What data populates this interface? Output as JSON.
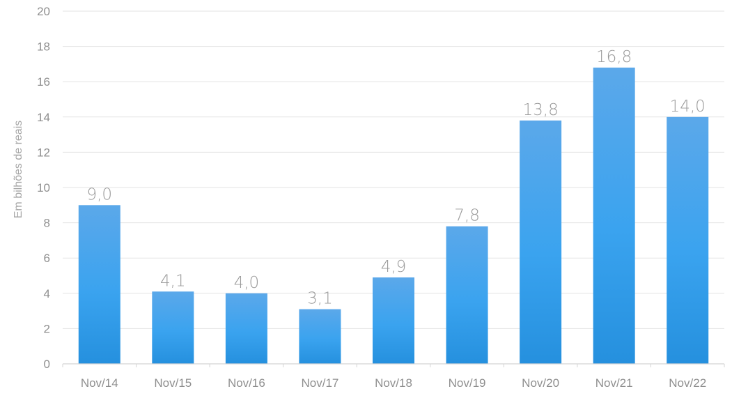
{
  "chart_data": {
    "type": "bar",
    "categories": [
      "Nov/14",
      "Nov/15",
      "Nov/16",
      "Nov/17",
      "Nov/18",
      "Nov/19",
      "Nov/20",
      "Nov/21",
      "Nov/22"
    ],
    "values": [
      9.0,
      4.1,
      4.0,
      3.1,
      4.9,
      7.8,
      13.8,
      16.8,
      14.0
    ],
    "value_labels": [
      "9,0",
      "4,1",
      "4,0",
      "3,1",
      "4,9",
      "7,8",
      "13,8",
      "16,8",
      "14,0"
    ],
    "ylabel": "Em bilhões de reais",
    "xlabel": "",
    "ylim": [
      0,
      20
    ],
    "yticks": [
      0,
      2,
      4,
      6,
      8,
      10,
      12,
      14,
      16,
      18,
      20
    ],
    "grid": true,
    "legend": "none",
    "colors": {
      "bar_top": "#5ba8ea",
      "bar_mid": "#3aa3ef",
      "bar_bottom": "#2590de"
    }
  }
}
